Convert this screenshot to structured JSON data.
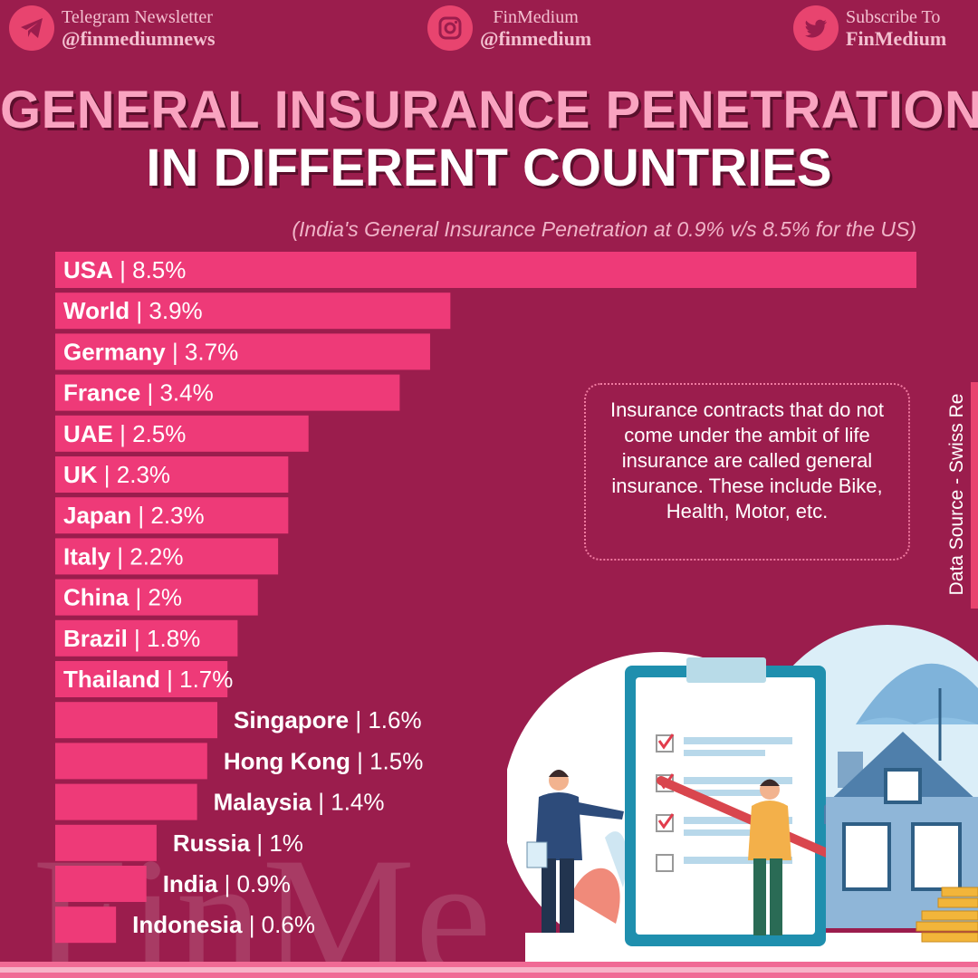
{
  "header": {
    "telegram": {
      "line1": "Telegram Newsletter",
      "line2": "@finmediumnews",
      "icon": "telegram-icon"
    },
    "instagram": {
      "line1": "FinMedium",
      "line2": "@finmedium",
      "icon": "instagram-icon"
    },
    "twitter": {
      "line1": "Subscribe To",
      "line2": "FinMedium",
      "icon": "twitter-icon"
    }
  },
  "title_line1": "GENERAL INSURANCE PENETRATION",
  "title_line2": "IN DIFFERENT COUNTRIES",
  "subtitle": "(India's General Insurance Penetration at 0.9% v/s 8.5% for the US)",
  "note": "Insurance contracts that do not come under the ambit of life insurance are called general insurance. These include Bike, Health, Motor, etc.",
  "source": "Data Source - Swiss Re",
  "watermark": "FinMe",
  "colors": {
    "background": "#9b1d4d",
    "bar": "#ee3a78",
    "title_pink": "#f9a3c0",
    "accent": "#e8446f"
  },
  "chart_data": {
    "type": "bar",
    "orientation": "horizontal",
    "categories": [
      "USA",
      "World",
      "Germany",
      "France",
      "UAE",
      "UK",
      "Japan",
      "Italy",
      "China",
      "Brazil",
      "Thailand",
      "Singapore",
      "Hong Kong",
      "Malaysia",
      "Russia",
      "India",
      "Indonesia"
    ],
    "values": [
      8.5,
      3.9,
      3.7,
      3.4,
      2.5,
      2.3,
      2.3,
      2.2,
      2,
      1.8,
      1.7,
      1.6,
      1.5,
      1.4,
      1,
      0.9,
      0.6
    ],
    "value_labels": [
      "8.5%",
      "3.9%",
      "3.7%",
      "3.4%",
      "2.5%",
      "2.3%",
      "2.3%",
      "2.2%",
      "2%",
      "1.8%",
      "1.7%",
      "1.6%",
      "1.5%",
      "1.4%",
      "1%",
      "0.9%",
      "0.6%"
    ],
    "unit": "%",
    "xlim": [
      0,
      8.5
    ]
  }
}
